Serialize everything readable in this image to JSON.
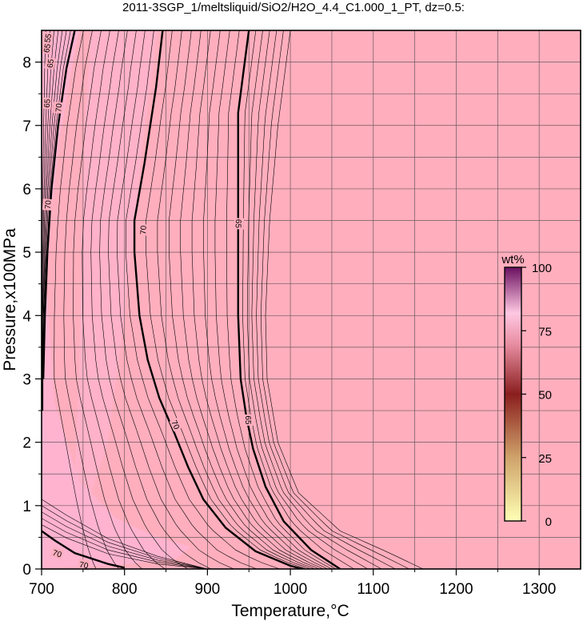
{
  "chart_data": {
    "type": "contour",
    "title": "2011-3SGP_1/meltsliquid/SiO2/H2O_4.4_C1.000_1_PT, dz=0.5:",
    "xlabel": "Temperature,°C",
    "ylabel": "Pressure,x100MPa",
    "xlim": [
      700,
      1350
    ],
    "ylim": [
      0,
      8.5
    ],
    "xticks": [
      700,
      800,
      900,
      1000,
      1100,
      1200,
      1300
    ],
    "yticks": [
      0,
      1,
      2,
      3,
      4,
      5,
      6,
      7,
      8
    ],
    "grid": true,
    "colorbar": {
      "title": "wt%",
      "range": [
        0,
        100
      ],
      "ticks": [
        0,
        25,
        50,
        75,
        100
      ],
      "placement": "right-inside"
    },
    "background_color": "#ffaebd",
    "light_region_color": "#ffb4d0",
    "contour_labels": [
      {
        "text": "70",
        "x": 822,
        "y": 5.35,
        "rotate": -88
      },
      {
        "text": "70",
        "x": 862,
        "y": 2.28,
        "rotate": 65
      },
      {
        "text": "65",
        "x": 938,
        "y": 5.45,
        "rotate": 92
      },
      {
        "text": "65",
        "x": 950,
        "y": 2.35,
        "rotate": 90
      },
      {
        "text": "70",
        "x": 707,
        "y": 5.75,
        "rotate": -86
      },
      {
        "text": "70",
        "x": 720,
        "y": 7.28,
        "rotate": -85
      },
      {
        "text": "65",
        "x": 706,
        "y": 7.35,
        "rotate": -86
      },
      {
        "text": "65",
        "x": 710,
        "y": 7.98,
        "rotate": -82
      },
      {
        "text": "65",
        "x": 706,
        "y": 8.22,
        "rotate": -80
      },
      {
        "text": "55",
        "x": 707,
        "y": 8.38,
        "rotate": -80
      },
      {
        "text": "70",
        "x": 719,
        "y": 0.25,
        "rotate": 18
      },
      {
        "text": "70",
        "x": 751,
        "y": 0.07,
        "rotate": 10
      }
    ],
    "major_contours": [
      {
        "level": 70,
        "points": [
          [
            700,
            0.6
          ],
          [
            716,
            0.45
          ],
          [
            740,
            0.25
          ],
          [
            780,
            0.08
          ],
          [
            800,
            0.02
          ]
        ]
      },
      {
        "level": 70,
        "points": [
          [
            846,
            8.5
          ],
          [
            838,
            7.6
          ],
          [
            824,
            6.4
          ],
          [
            812,
            5.5
          ],
          [
            812,
            5.0
          ],
          [
            818,
            4.0
          ],
          [
            828,
            3.3
          ],
          [
            842,
            2.7
          ],
          [
            860,
            2.15
          ],
          [
            877,
            1.6
          ],
          [
            895,
            1.1
          ],
          [
            922,
            0.65
          ],
          [
            958,
            0.28
          ],
          [
            1000,
            0.05
          ],
          [
            1015,
            0.0
          ]
        ]
      },
      {
        "level": 65,
        "points": [
          [
            950,
            8.5
          ],
          [
            945,
            8.0
          ],
          [
            937,
            7.2
          ],
          [
            937,
            6.2
          ],
          [
            937,
            5.0
          ],
          [
            937,
            4.0
          ],
          [
            940,
            3.0
          ],
          [
            947,
            2.4
          ],
          [
            955,
            1.9
          ],
          [
            970,
            1.3
          ],
          [
            992,
            0.75
          ],
          [
            1025,
            0.3
          ],
          [
            1060,
            0.0
          ]
        ]
      },
      {
        "level": 70,
        "points": [
          [
            740,
            8.5
          ],
          [
            730,
            7.9
          ],
          [
            720,
            7.0
          ],
          [
            712,
            6.0
          ],
          [
            707,
            5.0
          ],
          [
            704,
            4.0
          ],
          [
            702,
            3.0
          ]
        ]
      }
    ]
  }
}
